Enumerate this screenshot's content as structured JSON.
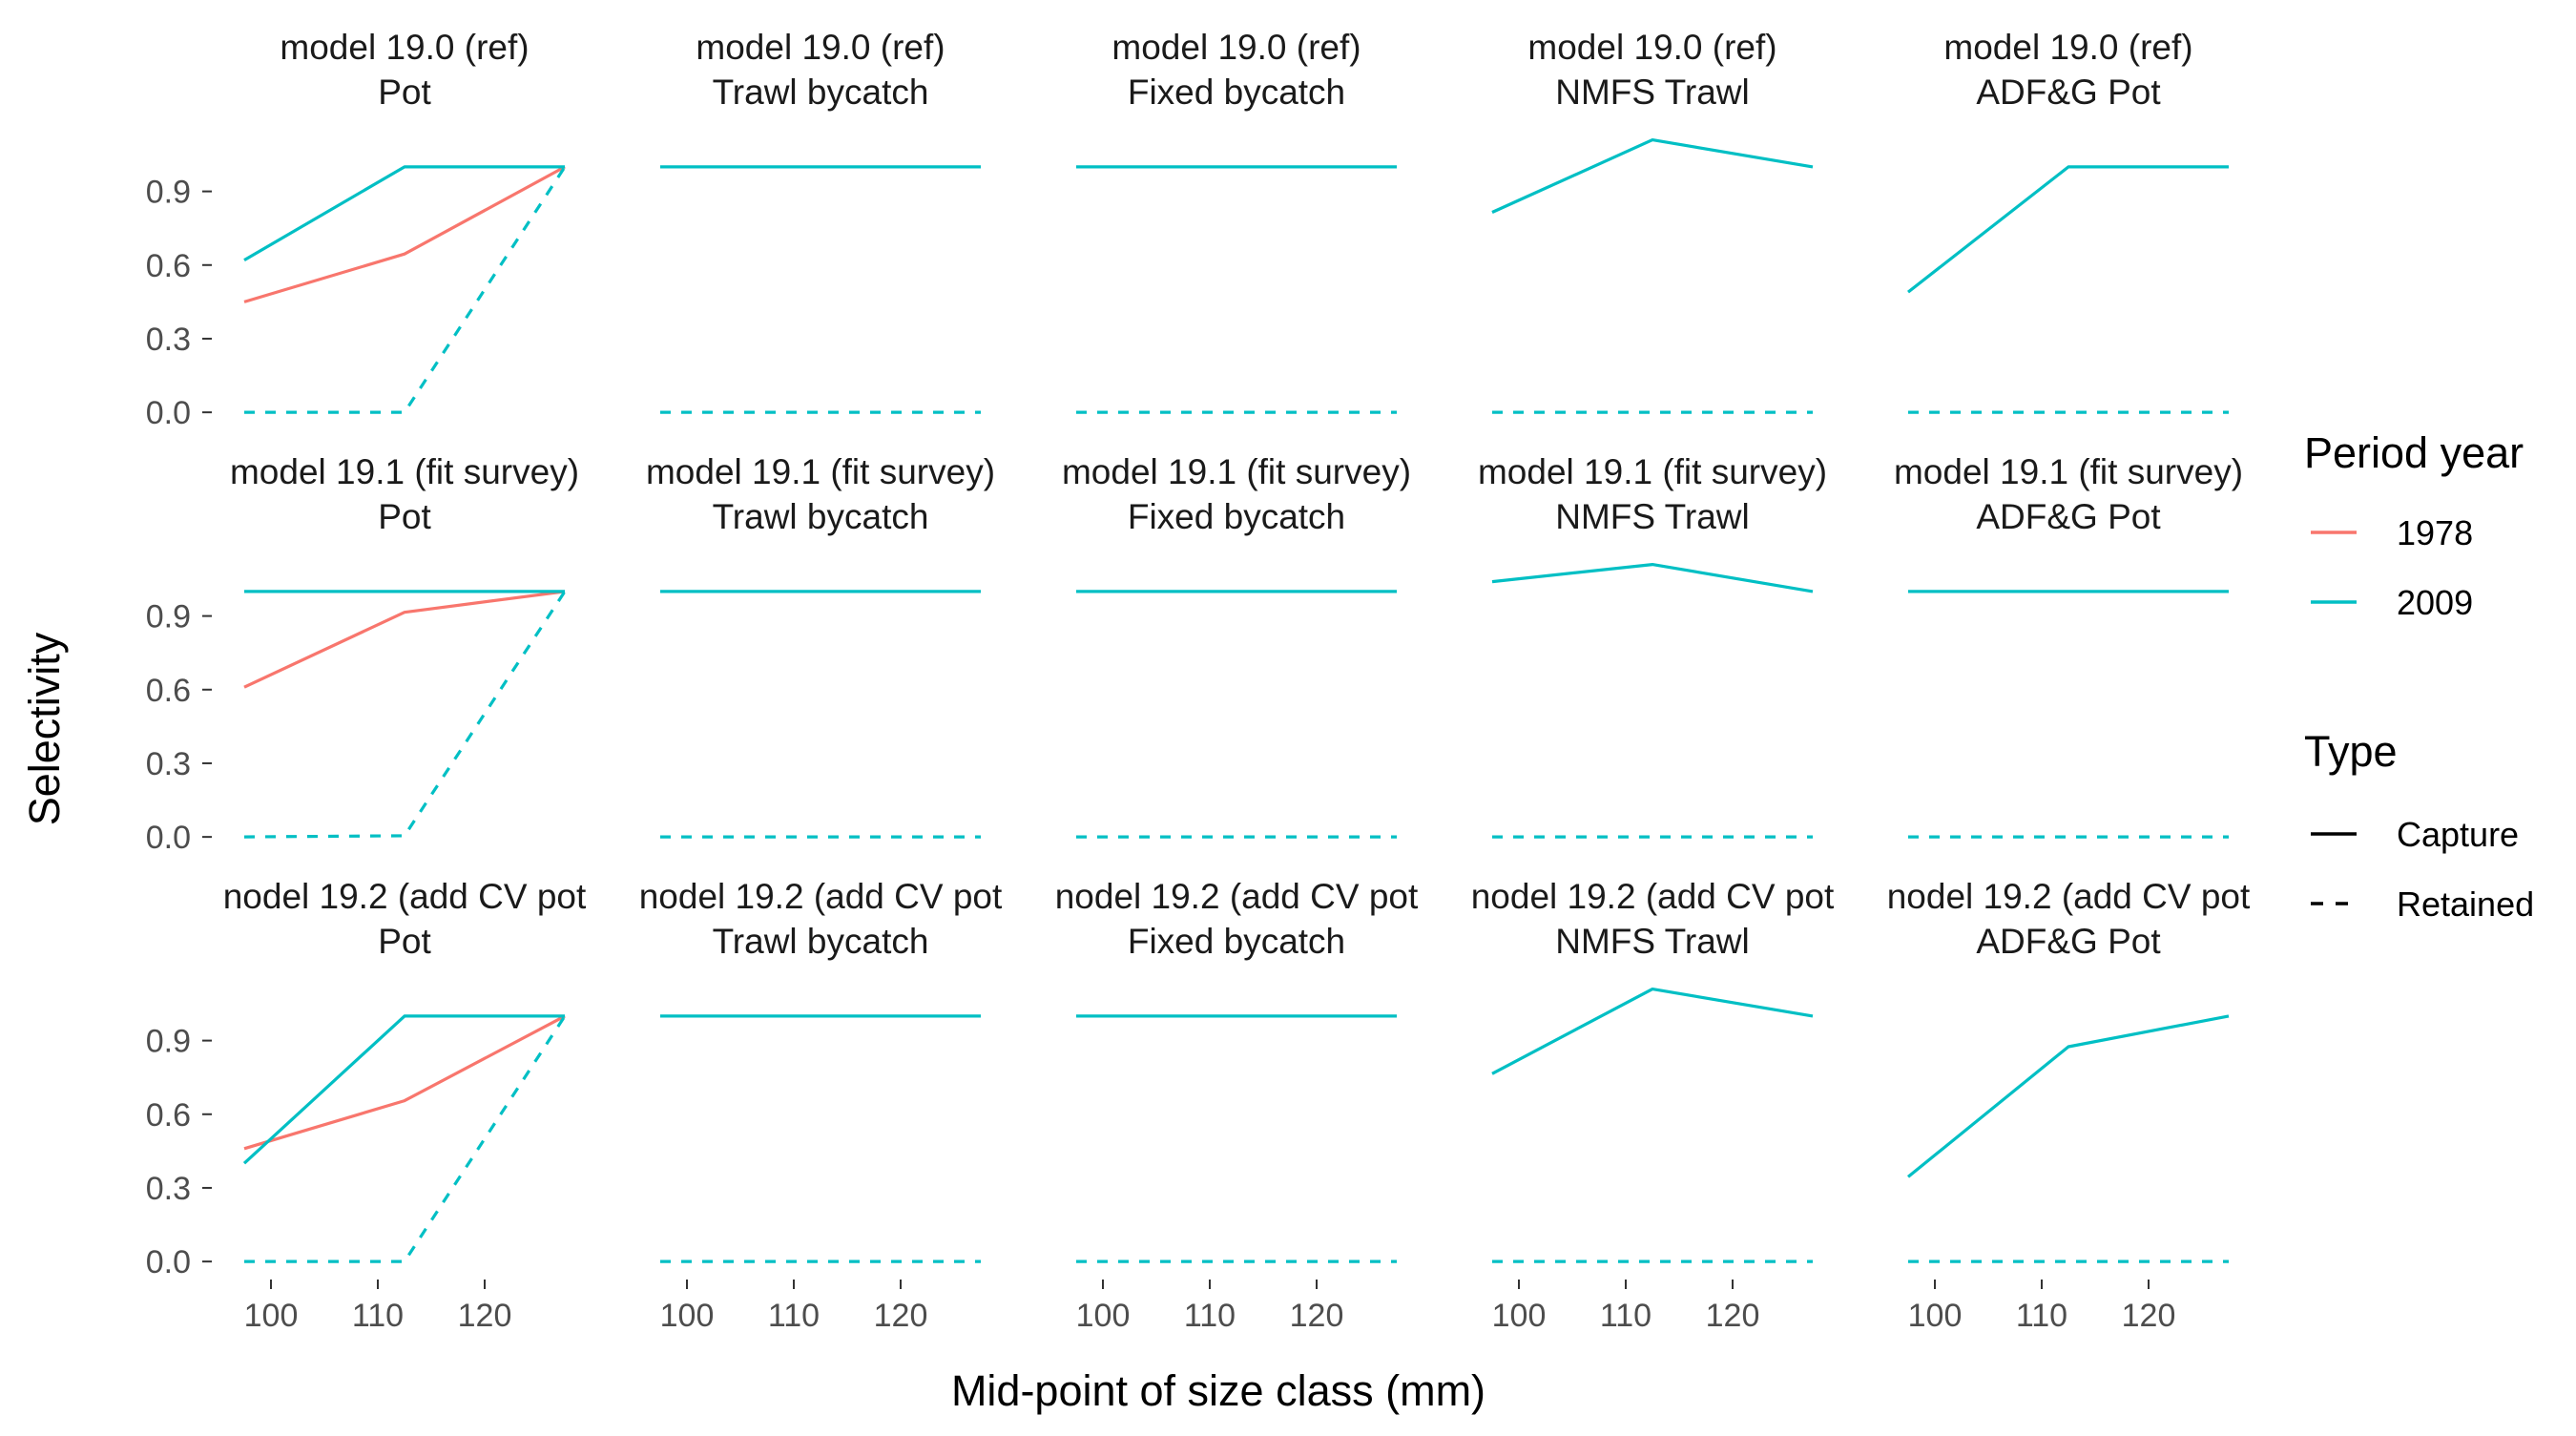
{
  "chart_data": {
    "type": "line",
    "xlabel": "Mid-point of size class (mm)",
    "ylabel": "Selectivity",
    "x": [
      97.5,
      112.5,
      127.5
    ],
    "xticks": [
      100,
      110,
      120
    ],
    "xlim": [
      95,
      130
    ],
    "yticks": [
      0.0,
      0.3,
      0.6,
      0.9
    ],
    "ytick_labels": [
      "0.0",
      "0.3",
      "0.6",
      "0.9"
    ],
    "ylim": [
      -0.05,
      1.12
    ],
    "colors": {
      "1978": "#F8766D",
      "2009": "#00BFC4"
    },
    "legend": {
      "position": "right",
      "period_title": "Period year",
      "period_items": [
        "1978",
        "2009"
      ],
      "type_title": "Type",
      "type_items": [
        "Capture",
        "Retained"
      ]
    },
    "row_labels": [
      "model 19.0 (ref)",
      "model 19.1 (fit survey)",
      "nodel 19.2 (add CV pot"
    ],
    "col_labels": [
      "Pot",
      "Trawl bycatch",
      "Fixed bycatch",
      "NMFS Trawl",
      "ADF&G Pot"
    ],
    "panels": [
      [
        {
          "series": [
            {
              "period": "1978",
              "type": "Capture",
              "y": [
                0.45,
                0.645,
                1.0
              ]
            },
            {
              "period": "2009",
              "type": "Capture",
              "y": [
                0.62,
                1.0,
                1.0
              ]
            },
            {
              "period": "2009",
              "type": "Retained",
              "y": [
                0.0,
                0.0,
                1.0
              ]
            }
          ]
        },
        {
          "series": [
            {
              "period": "2009",
              "type": "Capture",
              "y": [
                1.0,
                1.0,
                1.0
              ]
            },
            {
              "period": "2009",
              "type": "Retained",
              "y": [
                0.0,
                0.0,
                0.0
              ]
            }
          ]
        },
        {
          "series": [
            {
              "period": "2009",
              "type": "Capture",
              "y": [
                1.0,
                1.0,
                1.0
              ]
            },
            {
              "period": "2009",
              "type": "Retained",
              "y": [
                0.0,
                0.0,
                0.0
              ]
            }
          ]
        },
        {
          "series": [
            {
              "period": "2009",
              "type": "Capture",
              "y": [
                0.815,
                1.11,
                1.0
              ]
            },
            {
              "period": "2009",
              "type": "Retained",
              "y": [
                0.0,
                0.0,
                0.0
              ]
            }
          ]
        },
        {
          "series": [
            {
              "period": "2009",
              "type": "Capture",
              "y": [
                0.49,
                1.0,
                1.0
              ]
            },
            {
              "period": "2009",
              "type": "Retained",
              "y": [
                0.0,
                0.0,
                0.0
              ]
            }
          ]
        }
      ],
      [
        {
          "series": [
            {
              "period": "1978",
              "type": "Capture",
              "y": [
                0.61,
                0.915,
                1.0
              ]
            },
            {
              "period": "2009",
              "type": "Capture",
              "y": [
                1.0,
                1.0,
                1.0
              ]
            },
            {
              "period": "2009",
              "type": "Retained",
              "y": [
                0.0,
                0.005,
                1.0
              ]
            }
          ]
        },
        {
          "series": [
            {
              "period": "2009",
              "type": "Capture",
              "y": [
                1.0,
                1.0,
                1.0
              ]
            },
            {
              "period": "2009",
              "type": "Retained",
              "y": [
                0.0,
                0.0,
                0.0
              ]
            }
          ]
        },
        {
          "series": [
            {
              "period": "2009",
              "type": "Capture",
              "y": [
                1.0,
                1.0,
                1.0
              ]
            },
            {
              "period": "2009",
              "type": "Retained",
              "y": [
                0.0,
                0.0,
                0.0
              ]
            }
          ]
        },
        {
          "series": [
            {
              "period": "2009",
              "type": "Capture",
              "y": [
                1.04,
                1.11,
                1.0
              ]
            },
            {
              "period": "2009",
              "type": "Retained",
              "y": [
                0.0,
                0.0,
                0.0
              ]
            }
          ]
        },
        {
          "series": [
            {
              "period": "2009",
              "type": "Capture",
              "y": [
                1.0,
                1.0,
                1.0
              ]
            },
            {
              "period": "2009",
              "type": "Retained",
              "y": [
                0.0,
                0.0,
                0.0
              ]
            }
          ]
        }
      ],
      [
        {
          "series": [
            {
              "period": "1978",
              "type": "Capture",
              "y": [
                0.46,
                0.655,
                1.0
              ]
            },
            {
              "period": "2009",
              "type": "Capture",
              "y": [
                0.4,
                1.0,
                1.0
              ]
            },
            {
              "period": "2009",
              "type": "Retained",
              "y": [
                0.0,
                0.0,
                1.0
              ]
            }
          ]
        },
        {
          "series": [
            {
              "period": "2009",
              "type": "Capture",
              "y": [
                1.0,
                1.0,
                1.0
              ]
            },
            {
              "period": "2009",
              "type": "Retained",
              "y": [
                0.0,
                0.0,
                0.0
              ]
            }
          ]
        },
        {
          "series": [
            {
              "period": "2009",
              "type": "Capture",
              "y": [
                1.0,
                1.0,
                1.0
              ]
            },
            {
              "period": "2009",
              "type": "Retained",
              "y": [
                0.0,
                0.0,
                0.0
              ]
            }
          ]
        },
        {
          "series": [
            {
              "period": "2009",
              "type": "Capture",
              "y": [
                0.765,
                1.11,
                1.0
              ]
            },
            {
              "period": "2009",
              "type": "Retained",
              "y": [
                0.0,
                0.0,
                0.0
              ]
            }
          ]
        },
        {
          "series": [
            {
              "period": "2009",
              "type": "Capture",
              "y": [
                0.345,
                0.875,
                1.0
              ]
            },
            {
              "period": "2009",
              "type": "Retained",
              "y": [
                0.0,
                0.0,
                0.0
              ]
            }
          ]
        }
      ]
    ]
  }
}
